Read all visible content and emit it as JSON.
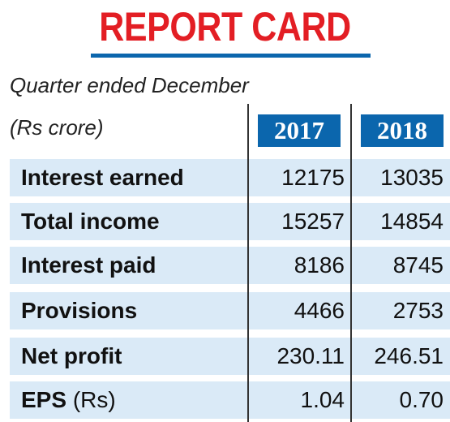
{
  "title": "REPORT CARD",
  "caption_period": "Quarter ended December",
  "caption_unit": "(Rs crore)",
  "years": [
    "2017",
    "2018"
  ],
  "rows": [
    {
      "label": "Interest earned",
      "unit": "",
      "y2017": "12175",
      "y2018": "13035"
    },
    {
      "label": "Total income",
      "unit": "",
      "y2017": "15257",
      "y2018": "14854"
    },
    {
      "label": "Interest paid",
      "unit": "",
      "y2017": "8186",
      "y2018": "8745"
    },
    {
      "label": "Provisions",
      "unit": "",
      "y2017": "4466",
      "y2018": "2753"
    },
    {
      "label": "Net profit",
      "unit": "",
      "y2017": "230.11",
      "y2018": "246.51"
    },
    {
      "label": "EPS",
      "unit": "(Rs)",
      "y2017": "1.04",
      "y2018": "0.70"
    }
  ],
  "colors": {
    "title": "#e31e24",
    "accent": "#0b66ad",
    "row_shade": "#daeaf7"
  }
}
